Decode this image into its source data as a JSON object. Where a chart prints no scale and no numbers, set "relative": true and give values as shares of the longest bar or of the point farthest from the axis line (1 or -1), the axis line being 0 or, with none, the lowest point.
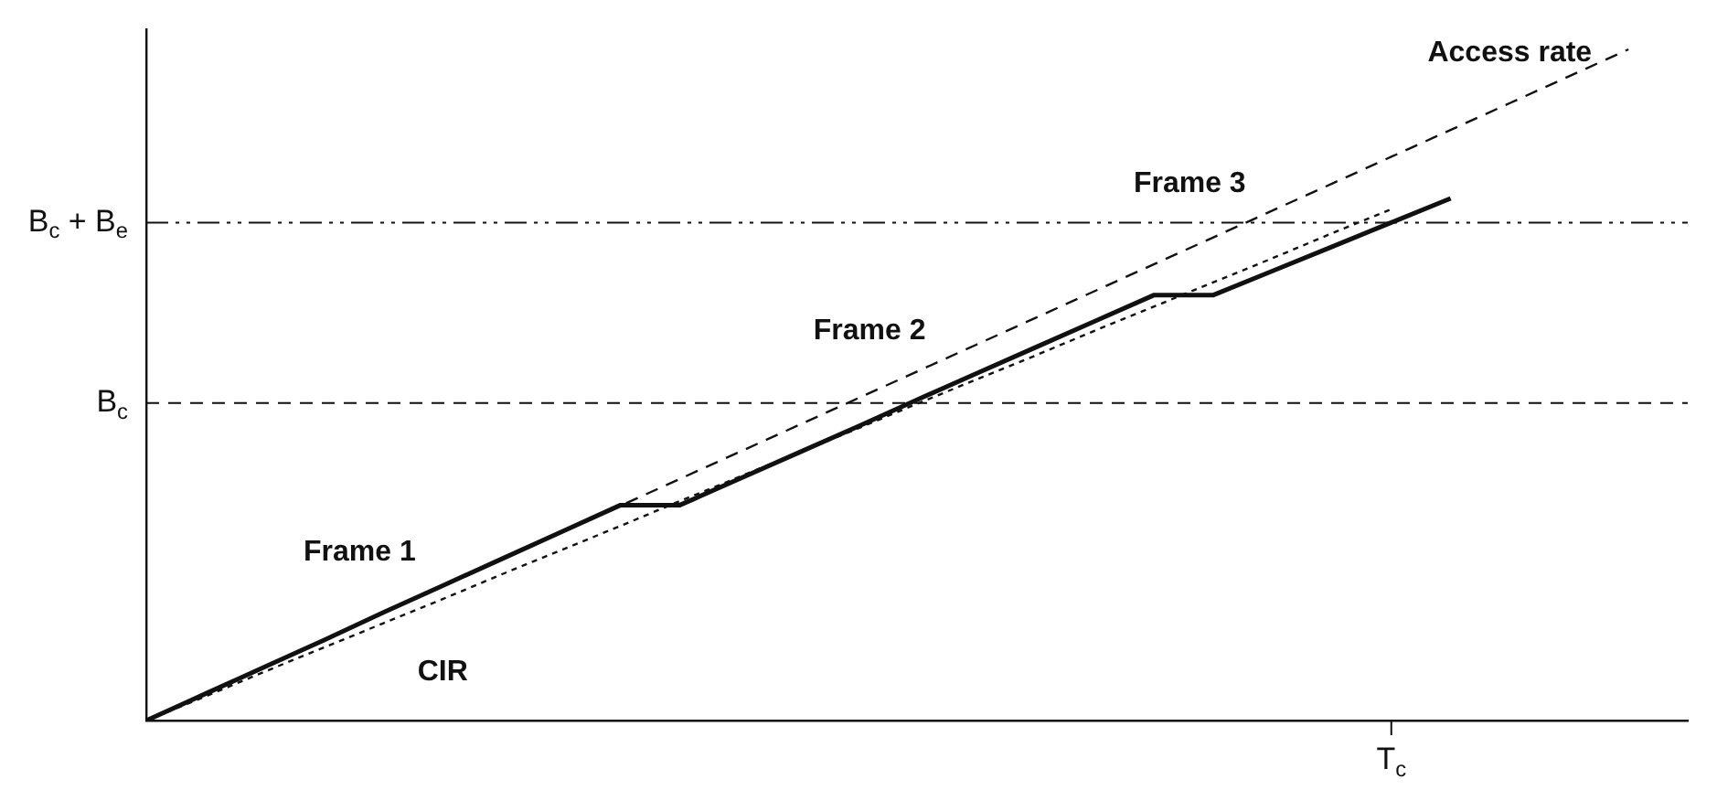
{
  "chart_data": {
    "type": "line",
    "relative": true,
    "legend": false,
    "marker": "none",
    "categories": [
      null,
      null,
      null,
      null,
      null,
      null,
      null,
      null,
      null,
      null,
      null,
      null,
      null,
      null,
      null,
      null,
      null,
      null,
      null,
      null,
      null,
      null,
      null,
      null,
      null,
      null,
      null
    ],
    "series": [
      {
        "color": "#111111",
        "line_style": "solid",
        "values": [
          0,
          0.04,
          0.08,
          0.12,
          0.161,
          0.201,
          0.241,
          0.281,
          0.321,
          0.321,
          0.36,
          0.399,
          0.438,
          0.478,
          0.517,
          0.556,
          0.595,
          0.634,
          0.634,
          0.67,
          0.706,
          0.742,
          0.778,
          null,
          null,
          null,
          null
        ]
      },
      {
        "name": "Access rate",
        "color": "#111111",
        "line_style": "dashed",
        "values": [
          0,
          0.04,
          0.08,
          0.12,
          0.16,
          0.2,
          0.24,
          0.28,
          0.32,
          0.36,
          0.4,
          0.44,
          0.48,
          0.52,
          0.56,
          0.6,
          0.64,
          0.68,
          0.72,
          0.76,
          0.8,
          0.84,
          0.88,
          0.92,
          0.96,
          1.0,
          null
        ]
      },
      {
        "name": "CIR",
        "color": "#111111",
        "line_style": "dotted",
        "values": [
          0,
          0.036,
          0.073,
          0.109,
          0.145,
          0.181,
          0.218,
          0.254,
          0.29,
          0.327,
          0.363,
          0.399,
          0.435,
          0.472,
          0.508,
          0.544,
          0.581,
          0.617,
          0.653,
          0.689,
          0.726,
          0.762,
          null,
          null,
          null,
          null,
          null
        ]
      }
    ],
    "ref_lines": [
      {
        "axis": "y",
        "value": 0.473,
        "label": "B$_{c}$",
        "line_style": "dashed",
        "color": "#111111"
      },
      {
        "axis": "y",
        "value": 0.742,
        "label": "B$_{c}$ + B$_{e}$",
        "line_style": "dashdot",
        "color": "#111111"
      }
    ],
    "annotations": [
      "Frame 1",
      "Frame 2",
      "Frame 3",
      "T$_{c}$"
    ]
  }
}
